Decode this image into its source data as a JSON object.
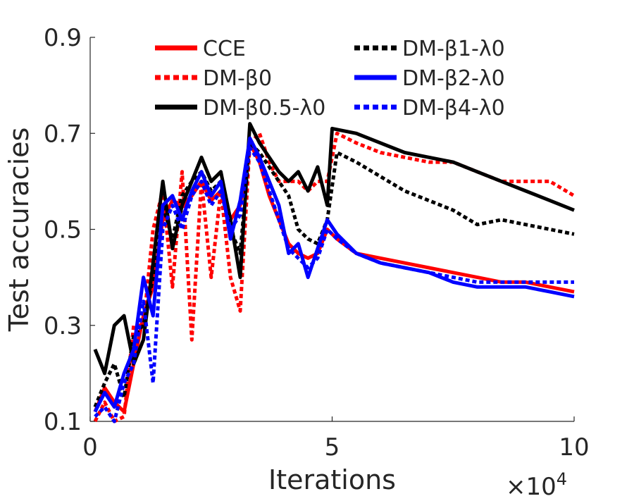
{
  "chart_data": {
    "type": "line",
    "title": "",
    "xlabel": "Iterations",
    "ylabel": "Test accuracies",
    "x_multiplier_base": "×10",
    "x_multiplier_exp": "4",
    "xlim": [
      0,
      10
    ],
    "ylim": [
      0.1,
      0.9
    ],
    "xticks": [
      0,
      5,
      10
    ],
    "xtick_labels": [
      "0",
      "5",
      "10"
    ],
    "yticks": [
      0.1,
      0.3,
      0.5,
      0.7,
      0.9
    ],
    "ytick_labels": [
      "0.1",
      "0.3",
      "0.5",
      "0.7",
      "0.9"
    ],
    "grid": false,
    "legend_position": "top",
    "series": [
      {
        "name": "CCE",
        "color": "#ff0000",
        "dash": "solid",
        "x": [
          0.1,
          0.3,
          0.5,
          0.7,
          0.9,
          1.1,
          1.3,
          1.5,
          1.7,
          1.9,
          2.1,
          2.3,
          2.5,
          2.7,
          2.9,
          3.1,
          3.3,
          3.5,
          3.7,
          3.9,
          4.1,
          4.3,
          4.5,
          4.7,
          4.9,
          5.1,
          5.5,
          6.0,
          6.5,
          7.0,
          7.5,
          8.0,
          8.5,
          9.0,
          9.5,
          10.0
        ],
        "values": [
          0.12,
          0.17,
          0.14,
          0.12,
          0.22,
          0.32,
          0.38,
          0.52,
          0.56,
          0.55,
          0.57,
          0.6,
          0.56,
          0.58,
          0.52,
          0.55,
          0.68,
          0.64,
          0.57,
          0.52,
          0.47,
          0.45,
          0.44,
          0.45,
          0.5,
          0.48,
          0.45,
          0.44,
          0.43,
          0.42,
          0.41,
          0.4,
          0.39,
          0.39,
          0.38,
          0.37
        ]
      },
      {
        "name": "DM-β0",
        "color": "#ff0000",
        "dash": "dotted",
        "x": [
          0.1,
          0.3,
          0.5,
          0.7,
          0.9,
          1.1,
          1.3,
          1.5,
          1.7,
          1.9,
          2.1,
          2.3,
          2.5,
          2.7,
          2.9,
          3.1,
          3.3,
          3.5,
          3.7,
          3.9,
          4.1,
          4.3,
          4.5,
          4.7,
          4.9,
          5.1,
          5.5,
          6.0,
          6.5,
          7.0,
          7.5,
          8.0,
          8.5,
          9.0,
          9.5,
          10.0
        ],
        "values": [
          0.1,
          0.14,
          0.1,
          0.11,
          0.3,
          0.3,
          0.5,
          0.58,
          0.38,
          0.62,
          0.27,
          0.6,
          0.4,
          0.58,
          0.4,
          0.33,
          0.68,
          0.7,
          0.64,
          0.6,
          0.6,
          0.6,
          0.58,
          0.6,
          0.6,
          0.7,
          0.68,
          0.66,
          0.65,
          0.64,
          0.64,
          0.62,
          0.6,
          0.6,
          0.6,
          0.57
        ]
      },
      {
        "name": "DM-β0.5-λ0",
        "color": "#000000",
        "dash": "solid",
        "x": [
          0.1,
          0.3,
          0.5,
          0.7,
          0.9,
          1.1,
          1.3,
          1.5,
          1.7,
          1.9,
          2.1,
          2.3,
          2.5,
          2.7,
          2.9,
          3.1,
          3.3,
          3.5,
          3.7,
          3.9,
          4.1,
          4.3,
          4.5,
          4.7,
          4.9,
          5.0,
          5.5,
          6.0,
          6.5,
          7.0,
          7.5,
          8.0,
          8.5,
          9.0,
          9.5,
          10.0
        ],
        "values": [
          0.25,
          0.2,
          0.3,
          0.32,
          0.22,
          0.27,
          0.43,
          0.6,
          0.46,
          0.55,
          0.6,
          0.65,
          0.6,
          0.62,
          0.52,
          0.4,
          0.72,
          0.68,
          0.65,
          0.62,
          0.6,
          0.62,
          0.58,
          0.63,
          0.55,
          0.71,
          0.7,
          0.68,
          0.66,
          0.65,
          0.64,
          0.62,
          0.6,
          0.58,
          0.56,
          0.54
        ]
      },
      {
        "name": "DM-β1-λ0",
        "color": "#000000",
        "dash": "dotted",
        "x": [
          0.1,
          0.3,
          0.5,
          0.7,
          0.9,
          1.1,
          1.3,
          1.5,
          1.7,
          1.9,
          2.1,
          2.3,
          2.5,
          2.7,
          2.9,
          3.1,
          3.3,
          3.5,
          3.7,
          3.9,
          4.1,
          4.3,
          4.5,
          4.7,
          4.9,
          5.1,
          5.5,
          6.0,
          6.5,
          7.0,
          7.5,
          8.0,
          8.5,
          9.0,
          9.5,
          10.0
        ],
        "values": [
          0.13,
          0.18,
          0.22,
          0.15,
          0.28,
          0.3,
          0.4,
          0.55,
          0.48,
          0.57,
          0.6,
          0.62,
          0.58,
          0.6,
          0.5,
          0.45,
          0.68,
          0.66,
          0.63,
          0.6,
          0.57,
          0.5,
          0.48,
          0.47,
          0.52,
          0.66,
          0.64,
          0.61,
          0.58,
          0.56,
          0.54,
          0.51,
          0.52,
          0.51,
          0.5,
          0.49
        ]
      },
      {
        "name": "DM-β2-λ0",
        "color": "#0000ff",
        "dash": "solid",
        "x": [
          0.1,
          0.3,
          0.5,
          0.7,
          0.9,
          1.1,
          1.3,
          1.5,
          1.7,
          1.9,
          2.1,
          2.3,
          2.5,
          2.7,
          2.9,
          3.1,
          3.3,
          3.5,
          3.7,
          3.9,
          4.1,
          4.3,
          4.5,
          4.7,
          4.9,
          5.1,
          5.5,
          6.0,
          6.5,
          7.0,
          7.5,
          8.0,
          8.5,
          9.0,
          9.5,
          10.0
        ],
        "values": [
          0.12,
          0.16,
          0.13,
          0.2,
          0.25,
          0.4,
          0.32,
          0.55,
          0.57,
          0.52,
          0.58,
          0.62,
          0.57,
          0.6,
          0.48,
          0.56,
          0.69,
          0.65,
          0.6,
          0.55,
          0.45,
          0.47,
          0.4,
          0.46,
          0.52,
          0.49,
          0.45,
          0.43,
          0.42,
          0.41,
          0.39,
          0.38,
          0.38,
          0.38,
          0.37,
          0.36
        ]
      },
      {
        "name": "DM-β4-λ0",
        "color": "#0000ff",
        "dash": "dotted",
        "x": [
          0.1,
          0.3,
          0.5,
          0.7,
          0.9,
          1.1,
          1.3,
          1.5,
          1.7,
          1.9,
          2.1,
          2.3,
          2.5,
          2.7,
          2.9,
          3.1,
          3.3,
          3.5,
          3.7,
          3.9,
          4.1,
          4.3,
          4.5,
          4.7,
          4.9,
          5.1,
          5.5,
          6.0,
          6.5,
          7.0,
          7.5,
          8.0,
          8.5,
          9.0,
          9.5,
          10.0
        ],
        "values": [
          0.11,
          0.13,
          0.1,
          0.18,
          0.22,
          0.35,
          0.18,
          0.5,
          0.55,
          0.5,
          0.57,
          0.6,
          0.55,
          0.58,
          0.5,
          0.53,
          0.67,
          0.64,
          0.58,
          0.52,
          0.46,
          0.44,
          0.42,
          0.44,
          0.5,
          0.48,
          0.45,
          0.43,
          0.42,
          0.41,
          0.4,
          0.39,
          0.39,
          0.39,
          0.39,
          0.39
        ]
      }
    ]
  }
}
